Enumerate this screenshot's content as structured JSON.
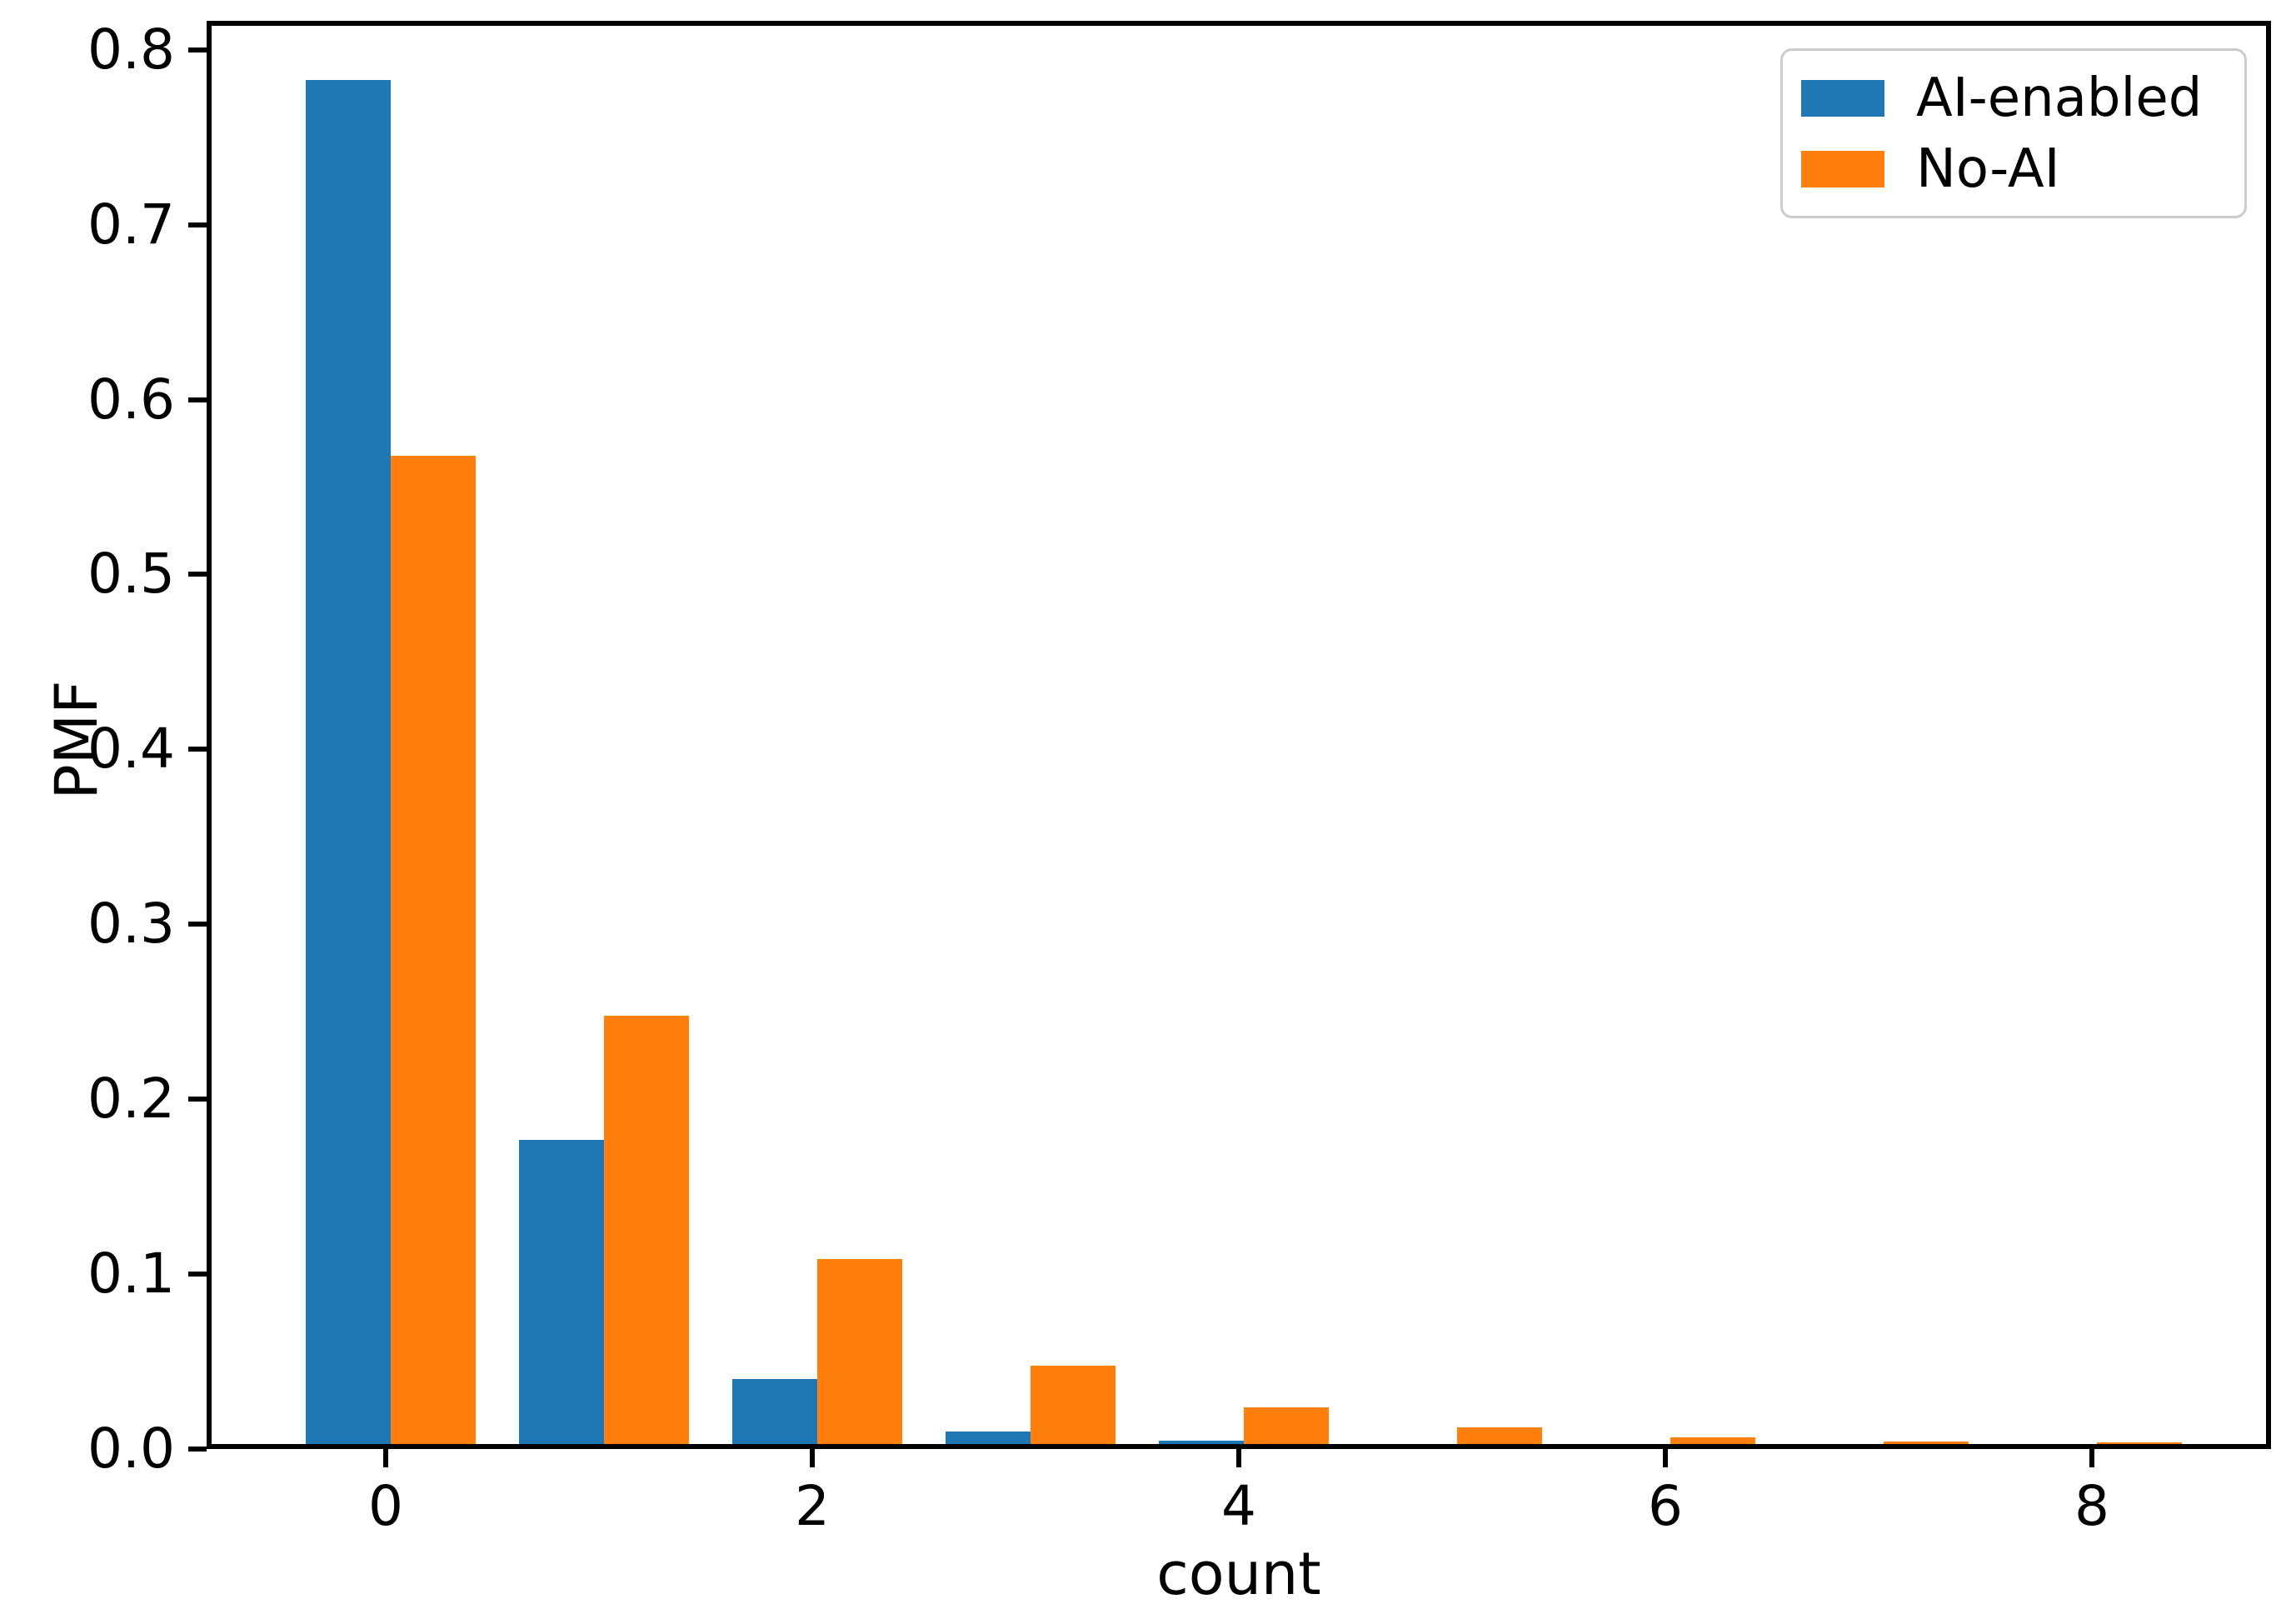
{
  "chart_data": {
    "type": "bar",
    "title": "",
    "xlabel": "count",
    "ylabel": "PMF",
    "x": [
      0,
      1,
      2,
      3,
      4,
      5,
      6,
      7,
      8
    ],
    "series": [
      {
        "name": "AI-enabled",
        "color": "#1f77b4",
        "values": [
          0.78,
          0.174,
          0.037,
          0.007,
          0.002,
          0,
          0,
          0,
          0
        ]
      },
      {
        "name": "No-AI",
        "color": "#ff7f0e",
        "values": [
          0.565,
          0.245,
          0.106,
          0.045,
          0.021,
          0.0095,
          0.004,
          0.0015,
          0.001
        ]
      }
    ],
    "bar_width": 0.4,
    "bar_offsets": [
      -0.4,
      0.0
    ],
    "xlim": [
      -0.84,
      8.84
    ],
    "ylim": [
      0,
      0.8165
    ],
    "xticks": [
      0,
      2,
      4,
      6,
      8
    ],
    "xtick_labels": [
      "0",
      "2",
      "4",
      "6",
      "8"
    ],
    "ytick_values": [
      0.0,
      0.1,
      0.2,
      0.3,
      0.4,
      0.5,
      0.6,
      0.7,
      0.8
    ],
    "ytick_labels": [
      "0.0",
      "0.1",
      "0.2",
      "0.3",
      "0.4",
      "0.5",
      "0.6",
      "0.7",
      "0.8"
    ],
    "grid": false,
    "legend_position": "upper right",
    "legend_border_color": "#cccccc",
    "axis_color": "#000000"
  }
}
